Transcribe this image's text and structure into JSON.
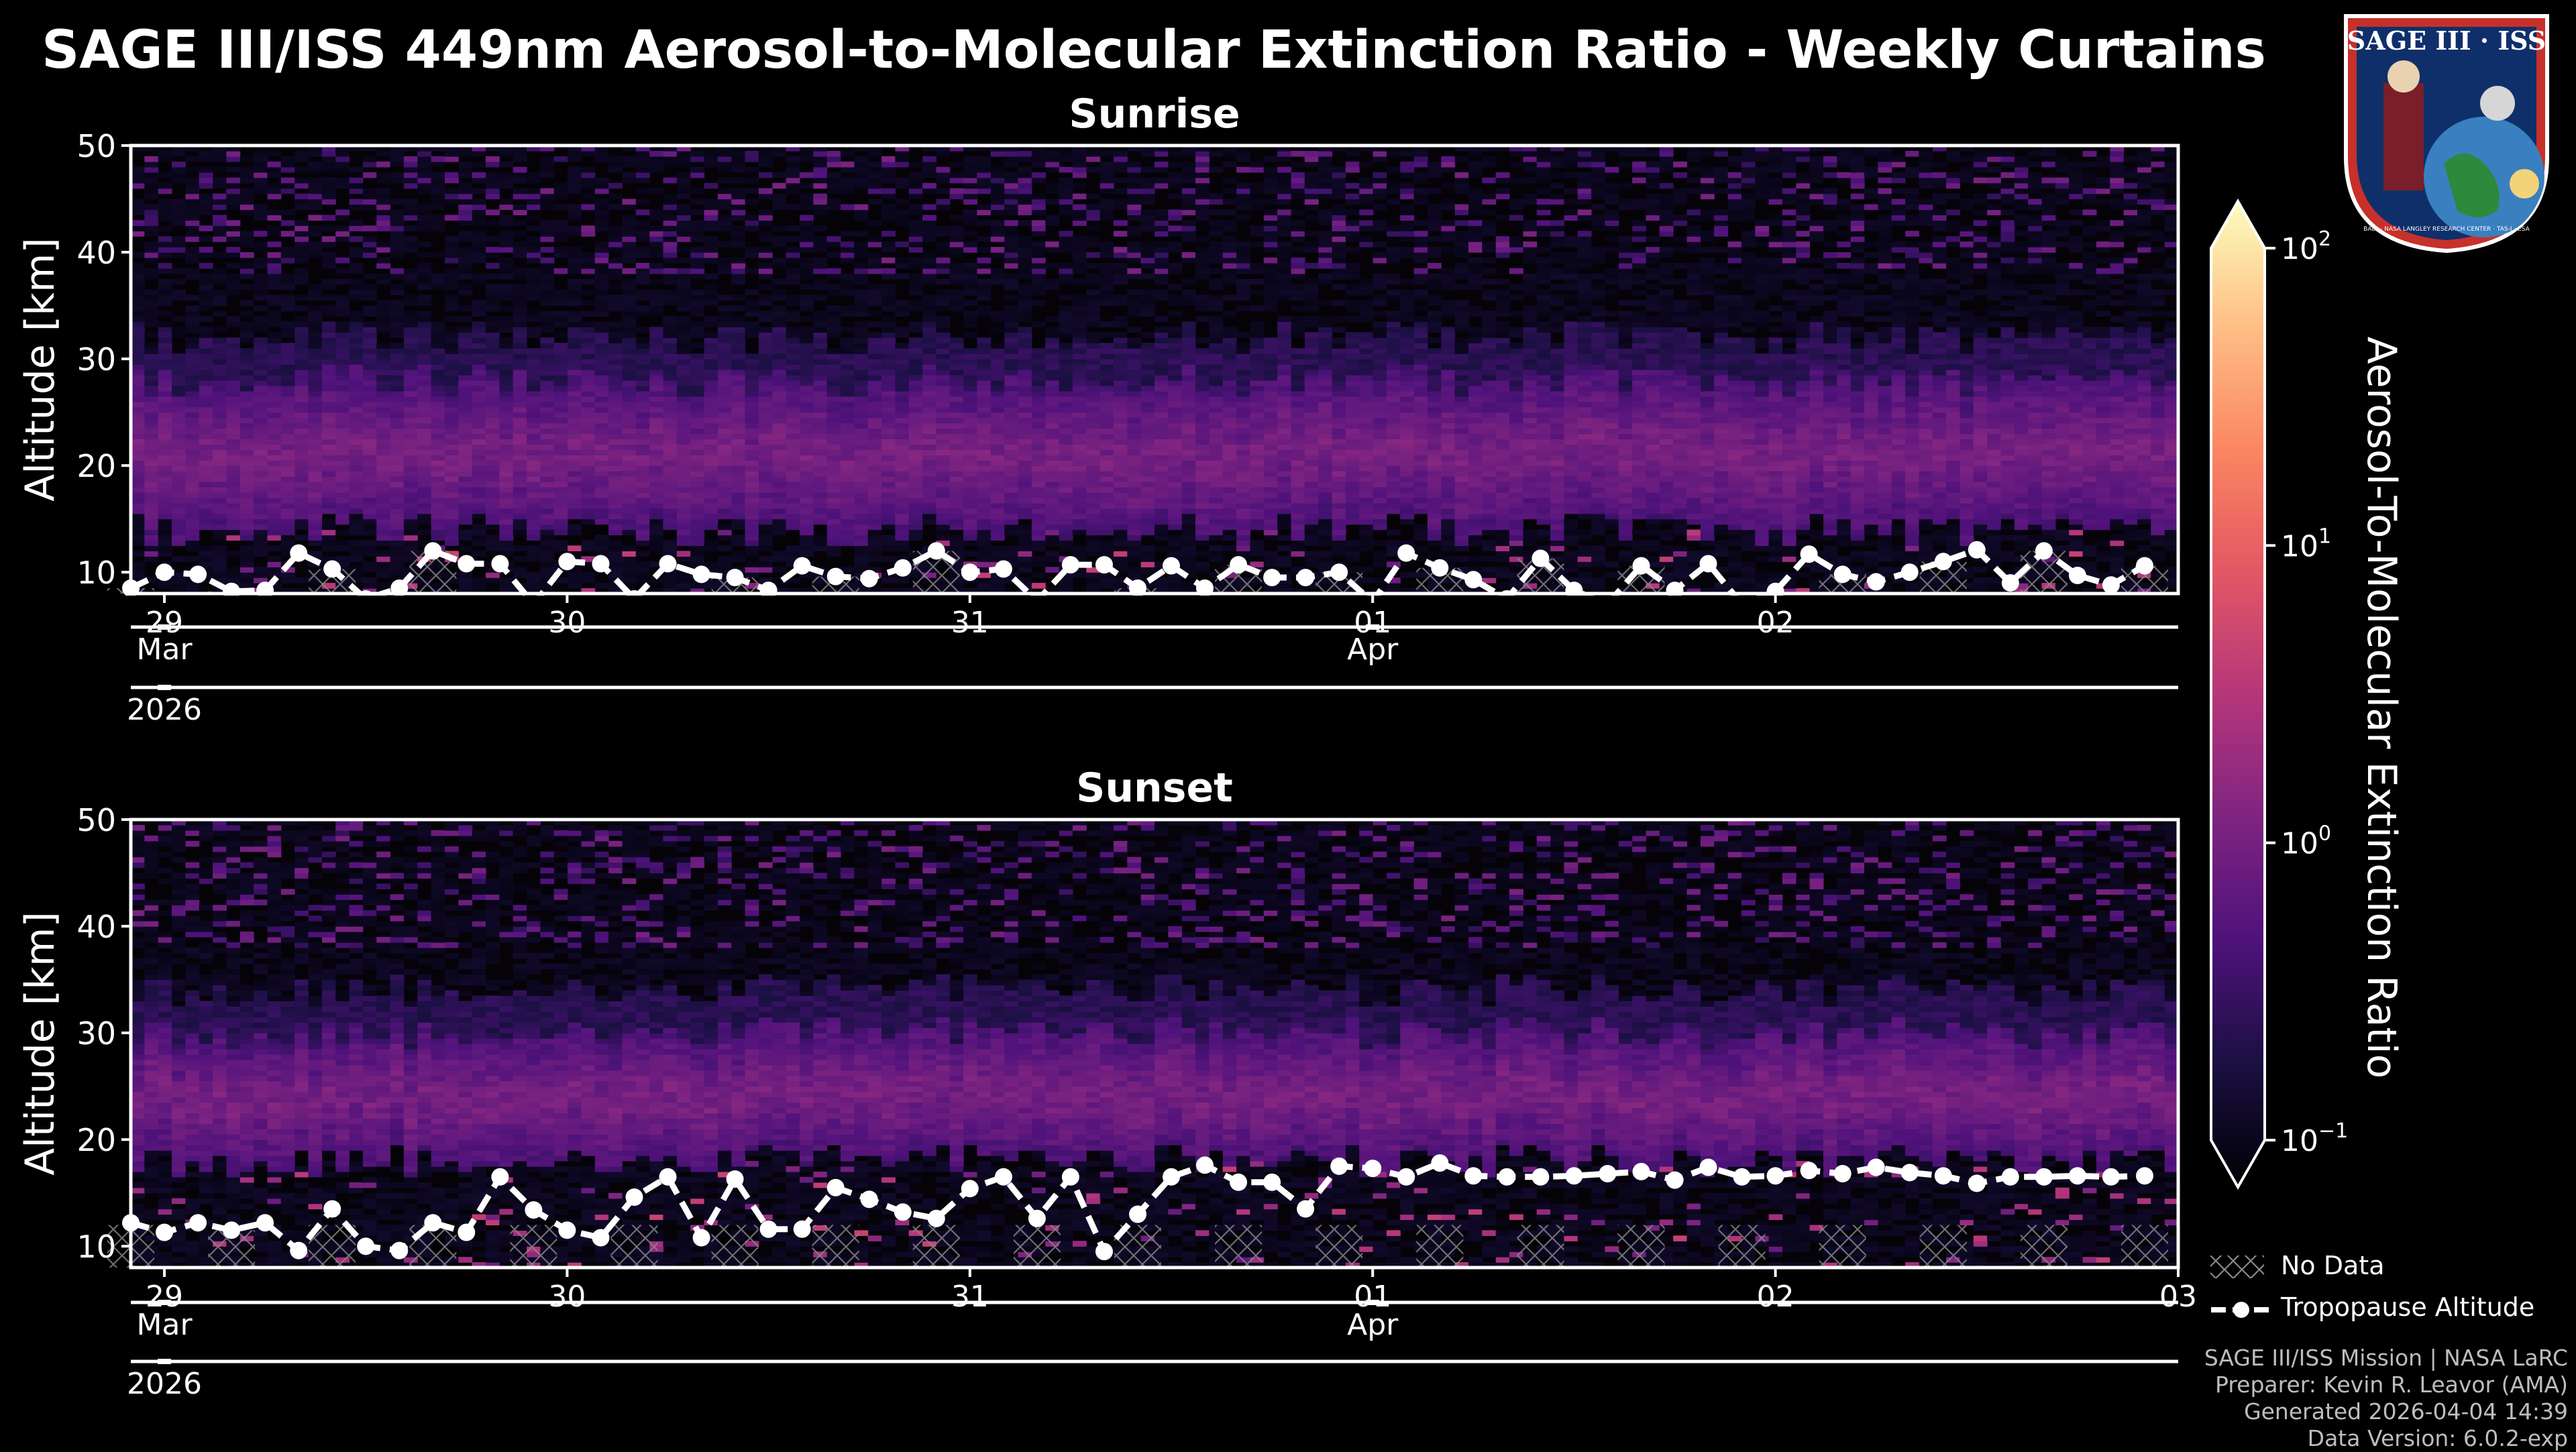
{
  "figure": {
    "title": "SAGE III/ISS 449nm Aerosol-to-Molecular Extinction Ratio - Weekly Curtains",
    "colorbar_label": "Aerosol-To-Molecular Extinction Ratio",
    "colorbar_ticks": [
      {
        "base": "10",
        "exp": "2",
        "value": 100
      },
      {
        "base": "10",
        "exp": "1",
        "value": 10
      },
      {
        "base": "10",
        "exp": "0",
        "value": 1
      },
      {
        "base": "10",
        "exp": "−1",
        "value": 0.1
      }
    ],
    "legend": {
      "no_data": "No Data",
      "tropopause": "Tropopause Altitude"
    },
    "credits": [
      "SAGE III/ISS Mission | NASA LaRC",
      "Preparer: Kevin R. Leavor (AMA)",
      "Generated 2026-04-04 14:39",
      "Data Version: 6.0.2-exp"
    ],
    "logo": {
      "text": "SAGE III · ISS",
      "ring_text": "BALL · NASA LANGLEY RESEARCH CENTER · TAS-I · ESA"
    }
  },
  "chart_data": [
    {
      "type": "heatmap",
      "title": "Sunrise",
      "ylabel": "Altitude [km]",
      "ylim": [
        8,
        50
      ],
      "yticks": [
        10,
        20,
        30,
        40,
        50
      ],
      "xlim": [
        "2026-03-28T22:00",
        "2026-04-03T00:00"
      ],
      "x_ticks": [
        "29",
        "30",
        "31",
        "01",
        "02"
      ],
      "month_ticks": [
        "Mar",
        "Apr"
      ],
      "year_ticks": [
        "2026"
      ],
      "colorscale": "magma",
      "color_range": [
        0.1,
        100
      ],
      "color_scale_type": "log",
      "aerosol_layer_km": [
        14,
        28
      ],
      "tropopause": {
        "x": [
          "2026-03-28T22:00",
          "2026-03-29T00:00",
          "2026-03-29T02:00",
          "2026-03-29T04:00",
          "2026-03-29T06:00",
          "2026-03-29T08:00",
          "2026-03-29T10:00",
          "2026-03-29T12:00",
          "2026-03-29T14:00",
          "2026-03-29T16:00",
          "2026-03-29T18:00",
          "2026-03-29T20:00",
          "2026-03-29T22:00",
          "2026-03-30T00:00",
          "2026-03-30T02:00",
          "2026-03-30T04:00",
          "2026-03-30T06:00",
          "2026-03-30T08:00",
          "2026-03-30T10:00",
          "2026-03-30T12:00",
          "2026-03-30T14:00",
          "2026-03-30T16:00",
          "2026-03-30T18:00",
          "2026-03-30T20:00",
          "2026-03-30T22:00",
          "2026-03-31T00:00",
          "2026-03-31T02:00",
          "2026-03-31T04:00",
          "2026-03-31T06:00",
          "2026-03-31T08:00",
          "2026-03-31T10:00",
          "2026-03-31T12:00",
          "2026-03-31T14:00",
          "2026-03-31T16:00",
          "2026-03-31T18:00",
          "2026-03-31T20:00",
          "2026-03-31T22:00",
          "2026-04-01T00:00",
          "2026-04-01T02:00",
          "2026-04-01T04:00",
          "2026-04-01T06:00",
          "2026-04-01T08:00",
          "2026-04-01T10:00",
          "2026-04-01T12:00",
          "2026-04-01T14:00",
          "2026-04-01T16:00",
          "2026-04-01T18:00",
          "2026-04-01T20:00",
          "2026-04-01T22:00",
          "2026-04-02T00:00",
          "2026-04-02T02:00",
          "2026-04-02T04:00",
          "2026-04-02T06:00",
          "2026-04-02T08:00",
          "2026-04-02T10:00",
          "2026-04-02T12:00",
          "2026-04-02T14:00",
          "2026-04-02T16:00",
          "2026-04-02T18:00",
          "2026-04-02T20:00",
          "2026-04-02T22:00"
        ],
        "y": [
          8.5,
          10,
          9.8,
          8.2,
          8.3,
          11.8,
          10.3,
          7.5,
          8.5,
          12,
          10.8,
          10.8,
          7,
          11,
          10.8,
          7.5,
          10.8,
          9.8,
          9.5,
          8.3,
          10.6,
          9.6,
          9.4,
          10.4,
          12,
          10,
          10.3,
          7.3,
          10.7,
          10.7,
          8.5,
          10.6,
          8.5,
          10.7,
          9.5,
          9.5,
          10,
          7.2,
          11.8,
          10.4,
          9.3,
          7.5,
          11.3,
          8.3,
          7,
          10.6,
          8.3,
          10.8,
          7,
          8.2,
          11.7,
          9.8,
          9.1,
          10,
          11,
          12.1,
          9,
          12,
          9.7,
          8.8,
          10.6
        ]
      }
    },
    {
      "type": "heatmap",
      "title": "Sunset",
      "ylabel": "Altitude [km]",
      "ylim": [
        8,
        50
      ],
      "yticks": [
        10,
        20,
        30,
        40,
        50
      ],
      "xlim": [
        "2026-03-28T22:00",
        "2026-04-03T00:00"
      ],
      "x_ticks": [
        "29",
        "30",
        "31",
        "01",
        "02",
        "03"
      ],
      "month_ticks": [
        "Mar",
        "Apr"
      ],
      "year_ticks": [
        "2026"
      ],
      "colorscale": "magma",
      "color_range": [
        0.1,
        100
      ],
      "color_scale_type": "log",
      "aerosol_layer_km": [
        18,
        30
      ],
      "tropopause": {
        "x": [
          "2026-03-28T22:00",
          "2026-03-29T00:00",
          "2026-03-29T02:00",
          "2026-03-29T04:00",
          "2026-03-29T06:00",
          "2026-03-29T08:00",
          "2026-03-29T10:00",
          "2026-03-29T12:00",
          "2026-03-29T14:00",
          "2026-03-29T16:00",
          "2026-03-29T18:00",
          "2026-03-29T20:00",
          "2026-03-29T22:00",
          "2026-03-30T00:00",
          "2026-03-30T02:00",
          "2026-03-30T04:00",
          "2026-03-30T06:00",
          "2026-03-30T08:00",
          "2026-03-30T10:00",
          "2026-03-30T12:00",
          "2026-03-30T14:00",
          "2026-03-30T16:00",
          "2026-03-30T18:00",
          "2026-03-30T20:00",
          "2026-03-30T22:00",
          "2026-03-31T00:00",
          "2026-03-31T02:00",
          "2026-03-31T04:00",
          "2026-03-31T06:00",
          "2026-03-31T08:00",
          "2026-03-31T10:00",
          "2026-03-31T12:00",
          "2026-03-31T14:00",
          "2026-03-31T16:00",
          "2026-03-31T18:00",
          "2026-03-31T20:00",
          "2026-03-31T22:00",
          "2026-04-01T00:00",
          "2026-04-01T02:00",
          "2026-04-01T04:00",
          "2026-04-01T06:00",
          "2026-04-01T08:00",
          "2026-04-01T10:00",
          "2026-04-01T12:00",
          "2026-04-01T14:00",
          "2026-04-01T16:00",
          "2026-04-01T18:00",
          "2026-04-01T20:00",
          "2026-04-01T22:00",
          "2026-04-02T00:00",
          "2026-04-02T02:00",
          "2026-04-02T04:00",
          "2026-04-02T06:00",
          "2026-04-02T08:00",
          "2026-04-02T10:00",
          "2026-04-02T12:00",
          "2026-04-02T14:00",
          "2026-04-02T16:00",
          "2026-04-02T18:00",
          "2026-04-02T20:00",
          "2026-04-02T22:00"
        ],
        "y": [
          12.2,
          11.3,
          12.2,
          11.5,
          12.2,
          9.6,
          13.5,
          10,
          9.6,
          12.2,
          11.3,
          16.5,
          13.4,
          11.5,
          10.8,
          14.6,
          16.5,
          10.8,
          16.3,
          11.6,
          11.6,
          15.5,
          14.4,
          13.2,
          12.6,
          15.4,
          16.5,
          12.6,
          16.5,
          9.5,
          13,
          16.5,
          17.6,
          16,
          16,
          13.5,
          17.5,
          17.3,
          16.5,
          17.8,
          16.6,
          16.5,
          16.5,
          16.6,
          16.8,
          17,
          16.2,
          17.4,
          16.5,
          16.6,
          17.1,
          16.8,
          17.4,
          16.9,
          16.6,
          15.9,
          16.5,
          16.5,
          16.6,
          16.5,
          16.6
        ]
      }
    }
  ]
}
